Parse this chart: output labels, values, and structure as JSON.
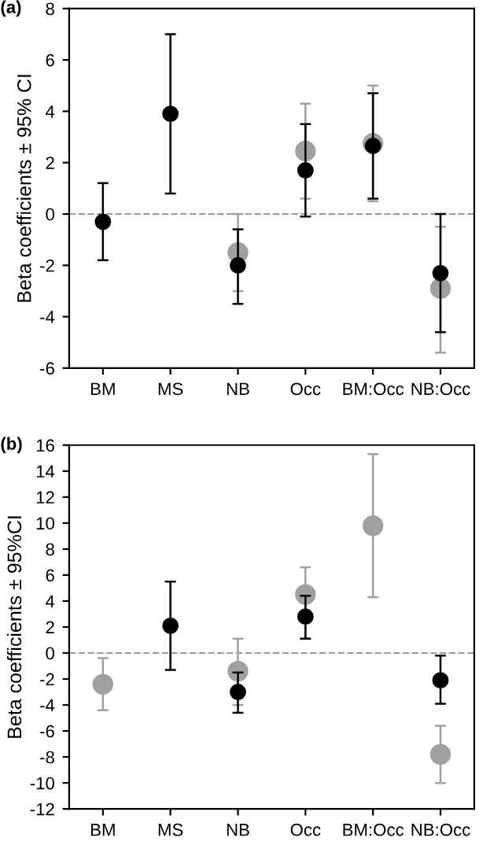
{
  "chart_data": [
    {
      "type": "scatter",
      "title": "(a)",
      "ylabel": "Beta coefficients ± 95% CI",
      "categories": [
        "BM",
        "MS",
        "NB",
        "Occ",
        "BM:Occ",
        "NB:Occ"
      ],
      "ylim": [
        -6,
        8
      ],
      "yticks": [
        -6,
        -4,
        -2,
        0,
        2,
        4,
        6,
        8
      ],
      "marker": "circle",
      "grid": false,
      "legend": false,
      "ref_lines": [
        {
          "axis": "y",
          "value": 0,
          "color": "#999999",
          "line_style": "dashed"
        }
      ],
      "series": [
        {
          "color": "#a0a0a0",
          "values": [
            null,
            null,
            -1.5,
            2.45,
            2.75,
            -2.9
          ],
          "errors": [
            null,
            null,
            [
              -3.0,
              0.0
            ],
            [
              0.6,
              4.3
            ],
            [
              0.5,
              5.0
            ],
            [
              -5.4,
              -0.5
            ]
          ]
        },
        {
          "color": "#000000",
          "values": [
            -0.3,
            3.9,
            -2.0,
            1.7,
            2.65,
            -2.3
          ],
          "errors": [
            [
              -1.8,
              1.2
            ],
            [
              0.8,
              7.0
            ],
            [
              -3.5,
              -0.6
            ],
            [
              -0.1,
              3.5
            ],
            [
              0.6,
              4.7
            ],
            [
              -4.6,
              0.0
            ]
          ]
        }
      ]
    },
    {
      "type": "scatter",
      "title": "(b)",
      "ylabel": "Beta coefficients ± 95%CI",
      "categories": [
        "BM",
        "MS",
        "NB",
        "Occ",
        "BM:Occ",
        "NB:Occ"
      ],
      "ylim": [
        -12,
        16
      ],
      "yticks": [
        -12,
        -10,
        -8,
        -6,
        -4,
        -2,
        0,
        2,
        4,
        6,
        8,
        10,
        12,
        14,
        16
      ],
      "marker": "circle",
      "grid": false,
      "legend": false,
      "ref_lines": [
        {
          "axis": "y",
          "value": 0,
          "color": "#999999",
          "line_style": "dashed"
        }
      ],
      "series": [
        {
          "color": "#a0a0a0",
          "values": [
            -2.4,
            null,
            -1.4,
            4.5,
            9.8,
            -7.8
          ],
          "errors": [
            [
              -4.4,
              -0.4
            ],
            null,
            [
              -4.0,
              1.1
            ],
            [
              1.1,
              6.6
            ],
            [
              4.3,
              15.3
            ],
            [
              -10.0,
              -5.6
            ]
          ]
        },
        {
          "color": "#000000",
          "values": [
            null,
            2.1,
            -3.0,
            2.8,
            null,
            -2.1
          ],
          "errors": [
            null,
            [
              -1.3,
              5.5
            ],
            [
              -4.6,
              -1.5
            ],
            [
              1.1,
              4.4
            ],
            null,
            [
              -3.9,
              -0.2
            ]
          ]
        }
      ]
    }
  ]
}
